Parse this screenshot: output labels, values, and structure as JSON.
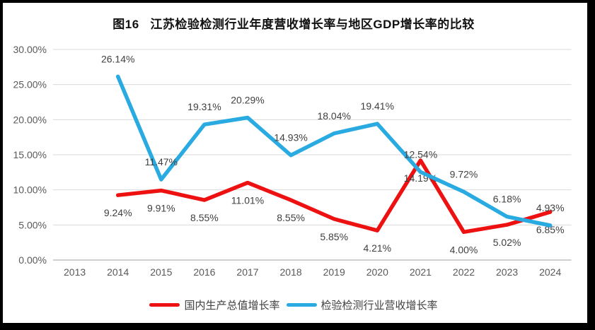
{
  "title": "图16   江苏检验检测行业年度营收增长率与地区GDP增长率的比较",
  "chart_data": {
    "type": "line",
    "categories": [
      "2013",
      "2014",
      "2015",
      "2016",
      "2017",
      "2018",
      "2019",
      "2020",
      "2021",
      "2022",
      "2023",
      "2024"
    ],
    "series": [
      {
        "key": "gdp-growth",
        "name": "国内生产总值增长率",
        "color": "#EE1111",
        "values": [
          null,
          9.24,
          9.91,
          8.55,
          11.01,
          8.55,
          5.85,
          4.21,
          14.19,
          4.0,
          5.02,
          6.85
        ],
        "labels": [
          null,
          "9.24%",
          "9.91%",
          "8.55%",
          "11.01%",
          "8.55%",
          "5.85%",
          "4.21%",
          "14.19%",
          "4.00%",
          "5.02%",
          "6.85%"
        ],
        "label_position": "below"
      },
      {
        "key": "inspection-revenue-growth",
        "name": "检验检测行业营收增长率",
        "color": "#29ABE2",
        "values": [
          null,
          26.14,
          11.47,
          19.31,
          20.29,
          14.93,
          18.04,
          19.41,
          12.54,
          9.72,
          6.18,
          4.93
        ],
        "labels": [
          null,
          "26.14%",
          "11.47%",
          "19.31%",
          "20.29%",
          "14.93%",
          "18.04%",
          "19.41%",
          "12.54%",
          "9.72%",
          "6.18%",
          "4.93%"
        ],
        "label_position": "above"
      }
    ],
    "y_axis": {
      "min": 0,
      "max": 30,
      "step": 5,
      "tick_labels": [
        "0.00%",
        "5.00%",
        "10.00%",
        "15.00%",
        "20.00%",
        "25.00%",
        "30.00%"
      ]
    },
    "grid": true,
    "legend_position": "bottom",
    "colors": {
      "gridline": "#D9D9D9",
      "axis_line": "#BFBFBF"
    }
  }
}
